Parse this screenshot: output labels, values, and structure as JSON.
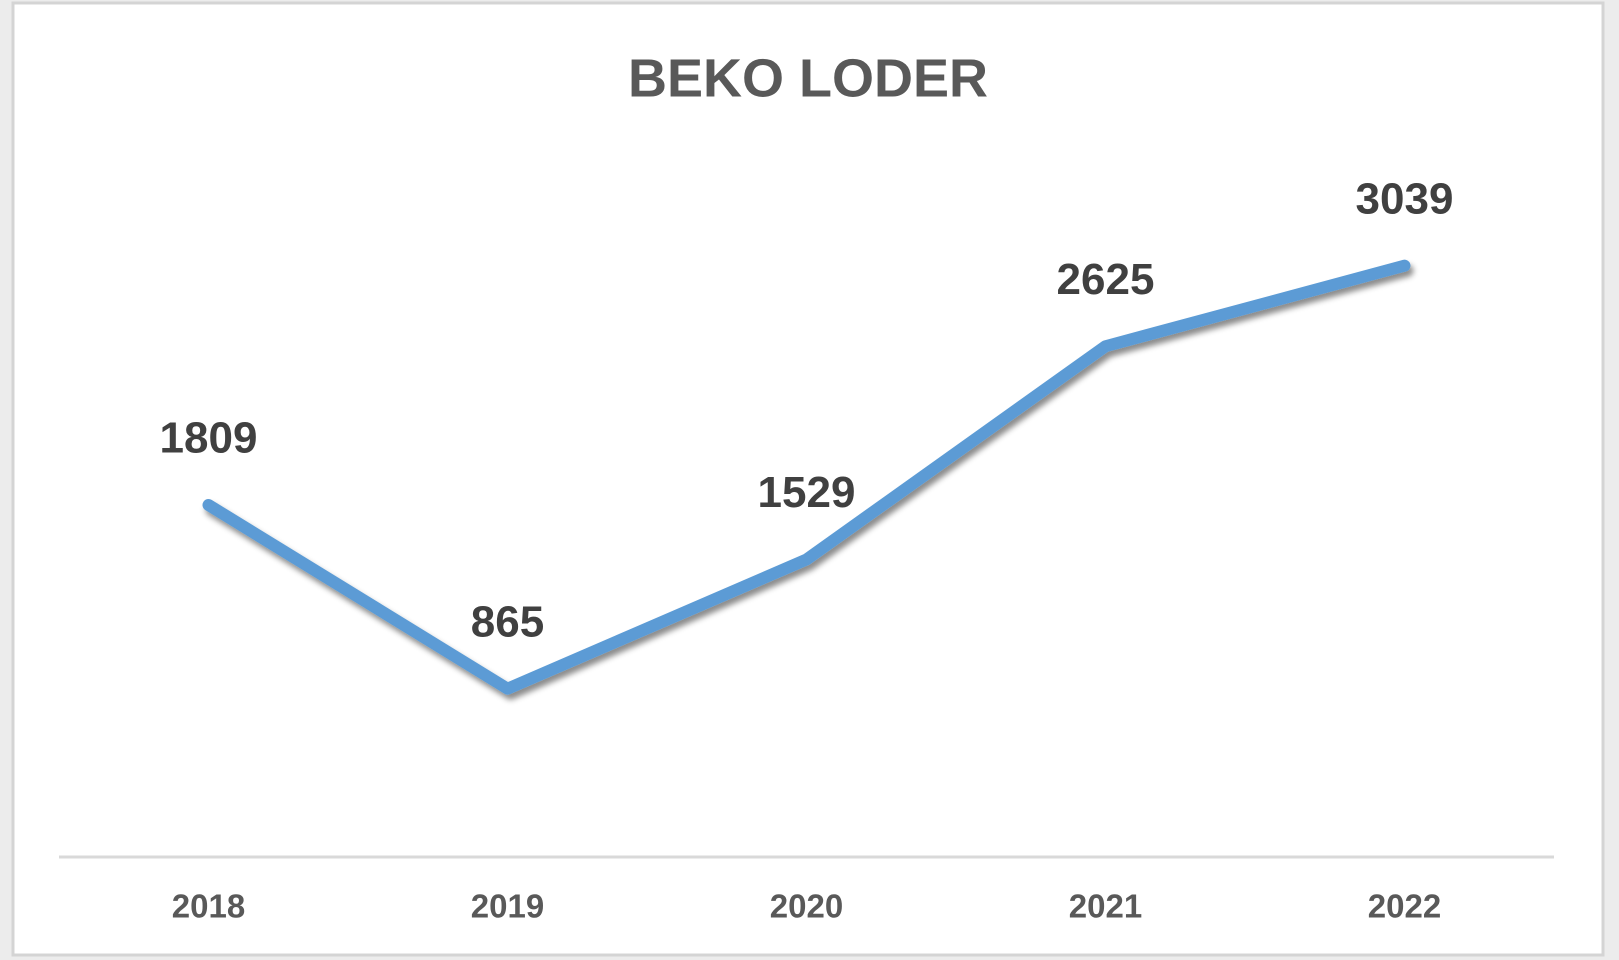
{
  "chart_data": {
    "type": "line",
    "title": "BEKO LODER",
    "categories": [
      "2018",
      "2019",
      "2020",
      "2021",
      "2022"
    ],
    "series": [
      {
        "name": "BEKO LODER",
        "color": "#5b9bd5",
        "values": [
          1809,
          865,
          1529,
          2625,
          3039
        ]
      }
    ],
    "ylim": [
      0,
      3500
    ],
    "data_labels": true
  }
}
